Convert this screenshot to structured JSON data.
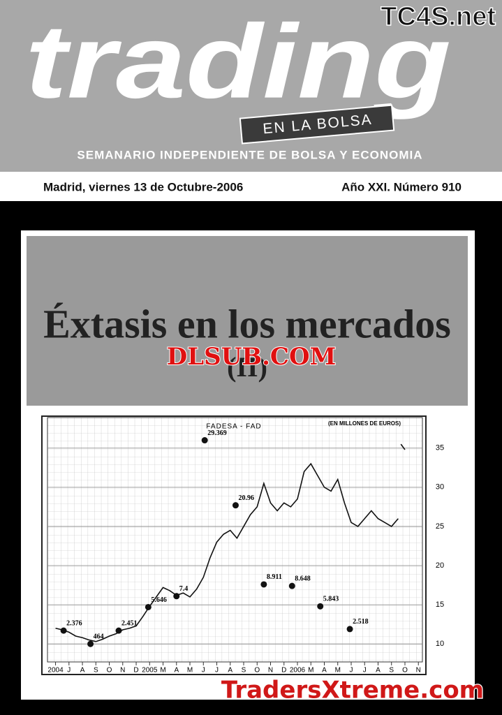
{
  "header": {
    "site_mark": "TC4S.net",
    "masthead": "trading",
    "tagline": "EN LA BOLSA",
    "subtitle": "SEMANARIO INDEPENDIENTE DE BOLSA Y ECONOMIA",
    "date": "Madrid, viernes 13 de Octubre-2006",
    "issue": "Año XXI. Número 910"
  },
  "cover": {
    "headline": "Éxtasis en los mercados",
    "headline_part": "(II)",
    "watermark": "DLSUB.COM"
  },
  "chart": {
    "type": "line",
    "title": "FADESA - FAD",
    "note": "(EN MILLONES DE EUROS)",
    "color": "#111111",
    "x": [
      0,
      0.5,
      1,
      1.5,
      2,
      2.5,
      3,
      3.5,
      4,
      4.5,
      5,
      5.5,
      6,
      6.5,
      7,
      7.5,
      8,
      8.5,
      9,
      9.5,
      10,
      10.5,
      11,
      11.5,
      12,
      12.5,
      13,
      13.5,
      14,
      14.5,
      15,
      15.5,
      16,
      16.5,
      17,
      17.5,
      18,
      18.5,
      19,
      19.5,
      20,
      20.5,
      21,
      21.5,
      22,
      22.5,
      23,
      23.5,
      24,
      24.5,
      25,
      25.5,
      25.6,
      25.7,
      26
    ],
    "values": [
      12,
      11.8,
      11.5,
      11,
      10.8,
      10.5,
      10.3,
      10.6,
      11,
      11.3,
      11.8,
      12,
      12.3,
      13.5,
      14.8,
      16,
      17.2,
      16.8,
      16.2,
      16.5,
      16,
      17,
      18.5,
      21,
      23,
      24,
      24.5,
      23.5,
      25,
      26.5,
      27.5,
      30.5,
      28,
      27,
      28,
      27.5,
      28.5,
      32,
      33,
      31.5,
      30,
      29.5,
      31,
      28,
      25.5,
      25,
      26,
      27,
      26,
      25.5,
      25,
      26,
      null,
      35.5,
      34.8
    ],
    "xlim": [
      -0.6,
      27.3
    ],
    "ylim": [
      7.7,
      38.9
    ],
    "xticks": [
      {
        "value": 0,
        "label": "2004"
      },
      {
        "value": 1,
        "label": "J"
      },
      {
        "value": 2,
        "label": "A"
      },
      {
        "value": 3,
        "label": "S"
      },
      {
        "value": 4,
        "label": "O"
      },
      {
        "value": 5,
        "label": "N"
      },
      {
        "value": 6,
        "label": "D"
      },
      {
        "value": 7,
        "label": "2005"
      },
      {
        "value": 8,
        "label": "M"
      },
      {
        "value": 9,
        "label": "A"
      },
      {
        "value": 10,
        "label": "M"
      },
      {
        "value": 11,
        "label": "J"
      },
      {
        "value": 12,
        "label": "J"
      },
      {
        "value": 13,
        "label": "A"
      },
      {
        "value": 14,
        "label": "S"
      },
      {
        "value": 15,
        "label": "O"
      },
      {
        "value": 16,
        "label": "N"
      },
      {
        "value": 17,
        "label": "D"
      },
      {
        "value": 18,
        "label": "2006"
      },
      {
        "value": 19,
        "label": "M"
      },
      {
        "value": 20,
        "label": "A"
      },
      {
        "value": 21,
        "label": "M"
      },
      {
        "value": 22,
        "label": "J"
      },
      {
        "value": 23,
        "label": "J"
      },
      {
        "value": 24,
        "label": "A"
      },
      {
        "value": 25,
        "label": "S"
      },
      {
        "value": 26,
        "label": "O"
      },
      {
        "value": 27,
        "label": "N"
      }
    ],
    "yticks": [
      10,
      15,
      20,
      25,
      30,
      35
    ],
    "annotations": [
      {
        "label": "2.376",
        "x": 0.6,
        "y": 11.7
      },
      {
        "label": "464",
        "x": 2.6,
        "y": 10
      },
      {
        "label": "2.451",
        "x": 4.7,
        "y": 11.7
      },
      {
        "label": "5.646",
        "x": 6.9,
        "y": 14.7
      },
      {
        "label": "7.4",
        "x": 9,
        "y": 16.1
      },
      {
        "label": "29.369",
        "x": 11.1,
        "y": 36
      },
      {
        "label": "20.96",
        "x": 13.4,
        "y": 27.7
      },
      {
        "label": "8.911",
        "x": 15.5,
        "y": 17.6
      },
      {
        "label": "8.648",
        "x": 17.6,
        "y": 17.4
      },
      {
        "label": "5.843",
        "x": 19.7,
        "y": 14.8
      },
      {
        "label": "2.518",
        "x": 21.9,
        "y": 11.9
      }
    ]
  },
  "footer": {
    "watermark": "TradersXtreme.com"
  }
}
